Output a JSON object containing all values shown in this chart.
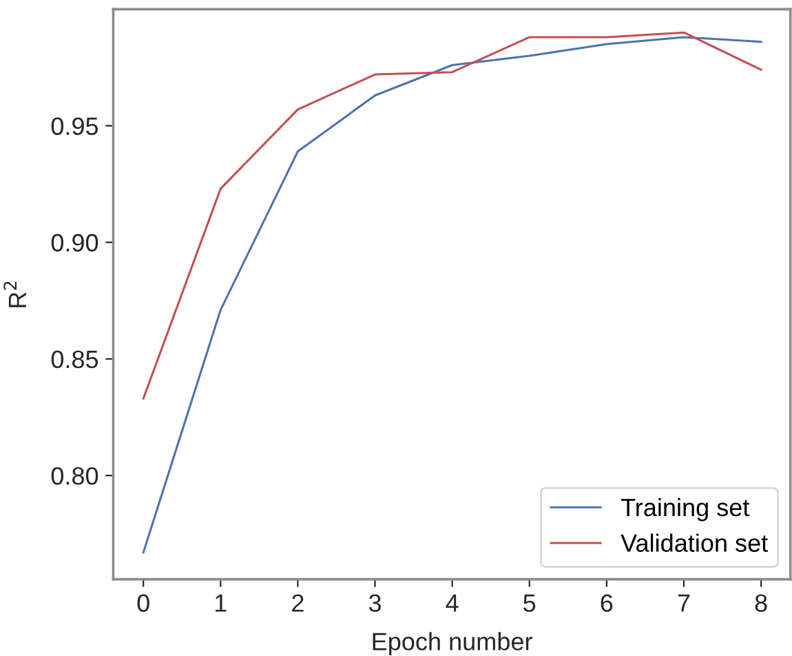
{
  "chart_data": {
    "type": "line",
    "xlabel": "Epoch number",
    "ylabel": "R$^{2}$",
    "x": [
      0,
      1,
      2,
      3,
      4,
      5,
      6,
      7,
      8
    ],
    "series": [
      {
        "name": "Training set",
        "color": "#4c72b0",
        "values": [
          0.767,
          0.871,
          0.939,
          0.963,
          0.976,
          0.98,
          0.985,
          0.988,
          0.986
        ]
      },
      {
        "name": "Validation set",
        "color": "#c44e52",
        "values": [
          0.833,
          0.923,
          0.957,
          0.972,
          0.973,
          0.988,
          0.988,
          0.99,
          0.974
        ]
      }
    ],
    "xlim": [
      -0.39,
      8.38
    ],
    "ylim": [
      0.7555,
      1.0
    ],
    "xticks": [
      0,
      1,
      2,
      3,
      4,
      5,
      6,
      7,
      8
    ],
    "yticks": [
      {
        "value": 0.8,
        "label": "0.80"
      },
      0.85,
      {
        "value": 0.9,
        "label": "0.90"
      },
      0.95
    ],
    "grid": false,
    "legend": "bottom right",
    "marker": "none",
    "line_style": "solid"
  }
}
